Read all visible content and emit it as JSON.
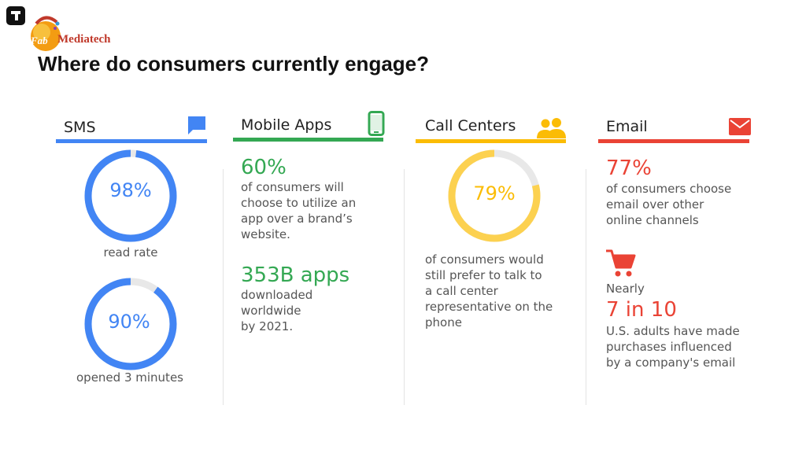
{
  "logo": {
    "prefix": "Fab",
    "name": "Mediatech"
  },
  "slide": {
    "title": "Where do consumers currently engage?"
  },
  "colors": {
    "sms": "#4285f4",
    "mobile": "#34a853",
    "call": "#fbbc05",
    "email": "#ea4335",
    "track": "#e8e8e8"
  },
  "sms": {
    "title": "SMS",
    "icon": "chat-bubble-icon",
    "stat1": {
      "value": "98%",
      "fraction": 0.98,
      "label": "read rate"
    },
    "stat2": {
      "value": "90%",
      "fraction": 0.9,
      "label": "opened 3 minutes"
    }
  },
  "mobile": {
    "title": "Mobile Apps",
    "icon": "smartphone-icon",
    "stat1": {
      "value": "60%",
      "lines": [
        "of consumers will",
        "choose to utilize an",
        "app over a brand’s",
        "website."
      ]
    },
    "stat2": {
      "value": "353B apps",
      "lines": [
        "downloaded",
        "worldwide",
        "by 2021."
      ]
    }
  },
  "call": {
    "title": "Call Centers",
    "icon": "people-icon",
    "stat": {
      "value": "79%",
      "fraction": 0.79,
      "lines": [
        "of consumers would",
        "still prefer to talk to",
        "a call center",
        "representative on the",
        "phone"
      ]
    }
  },
  "email": {
    "title": "Email",
    "icon": "envelope-icon",
    "stat1": {
      "value": "77%",
      "lines": [
        "of consumers choose",
        "email over other",
        "online channels"
      ]
    },
    "cart_icon": "shopping-cart-icon",
    "prefix": "Nearly",
    "stat2": {
      "value": "7 in 10",
      "lines": [
        "U.S. adults have made",
        "purchases influenced",
        "by a company's email"
      ]
    }
  }
}
